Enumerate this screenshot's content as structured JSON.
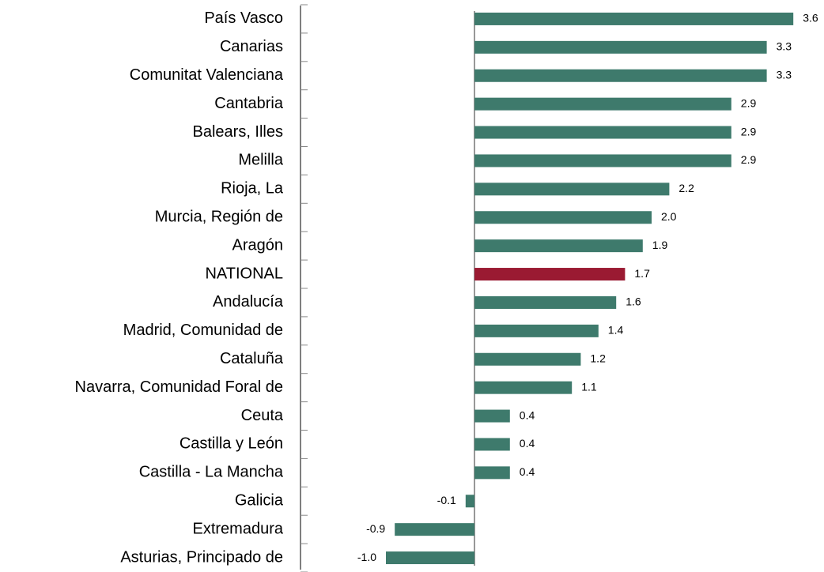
{
  "chart_data": {
    "type": "hbar",
    "categories": [
      "País Vasco",
      "Canarias",
      "Comunitat Valenciana",
      "Cantabria",
      "Balears, Illes",
      "Melilla",
      "Rioja, La",
      "Murcia, Región de",
      "Aragón",
      "NATIONAL",
      "Andalucía",
      "Madrid, Comunidad de",
      "Cataluña",
      "Navarra, Comunidad Foral de",
      "Ceuta",
      "Castilla y León",
      "Castilla - La Mancha",
      "Galicia",
      "Extremadura",
      "Asturias, Principado de"
    ],
    "values": [
      3.6,
      3.3,
      3.3,
      2.9,
      2.9,
      2.9,
      2.2,
      2.0,
      1.9,
      1.7,
      1.6,
      1.4,
      1.2,
      1.1,
      0.4,
      0.4,
      0.4,
      -0.1,
      -0.9,
      -1.0
    ],
    "value_labels": [
      "3.6",
      "3.3",
      "3.3",
      "2.9",
      "2.9",
      "2.9",
      "2.2",
      "2.0",
      "1.9",
      "1.7",
      "1.6",
      "1.4",
      "1.2",
      "1.1",
      "0.4",
      "0.4",
      "0.4",
      "-0.1",
      "-0.9",
      "-1.0"
    ],
    "colors": [
      "#3e7a6c",
      "#3e7a6c",
      "#3e7a6c",
      "#3e7a6c",
      "#3e7a6c",
      "#3e7a6c",
      "#3e7a6c",
      "#3e7a6c",
      "#3e7a6c",
      "#9a1a32",
      "#3e7a6c",
      "#3e7a6c",
      "#3e7a6c",
      "#3e7a6c",
      "#3e7a6c",
      "#3e7a6c",
      "#3e7a6c",
      "#3e7a6c",
      "#3e7a6c",
      "#3e7a6c"
    ]
  }
}
